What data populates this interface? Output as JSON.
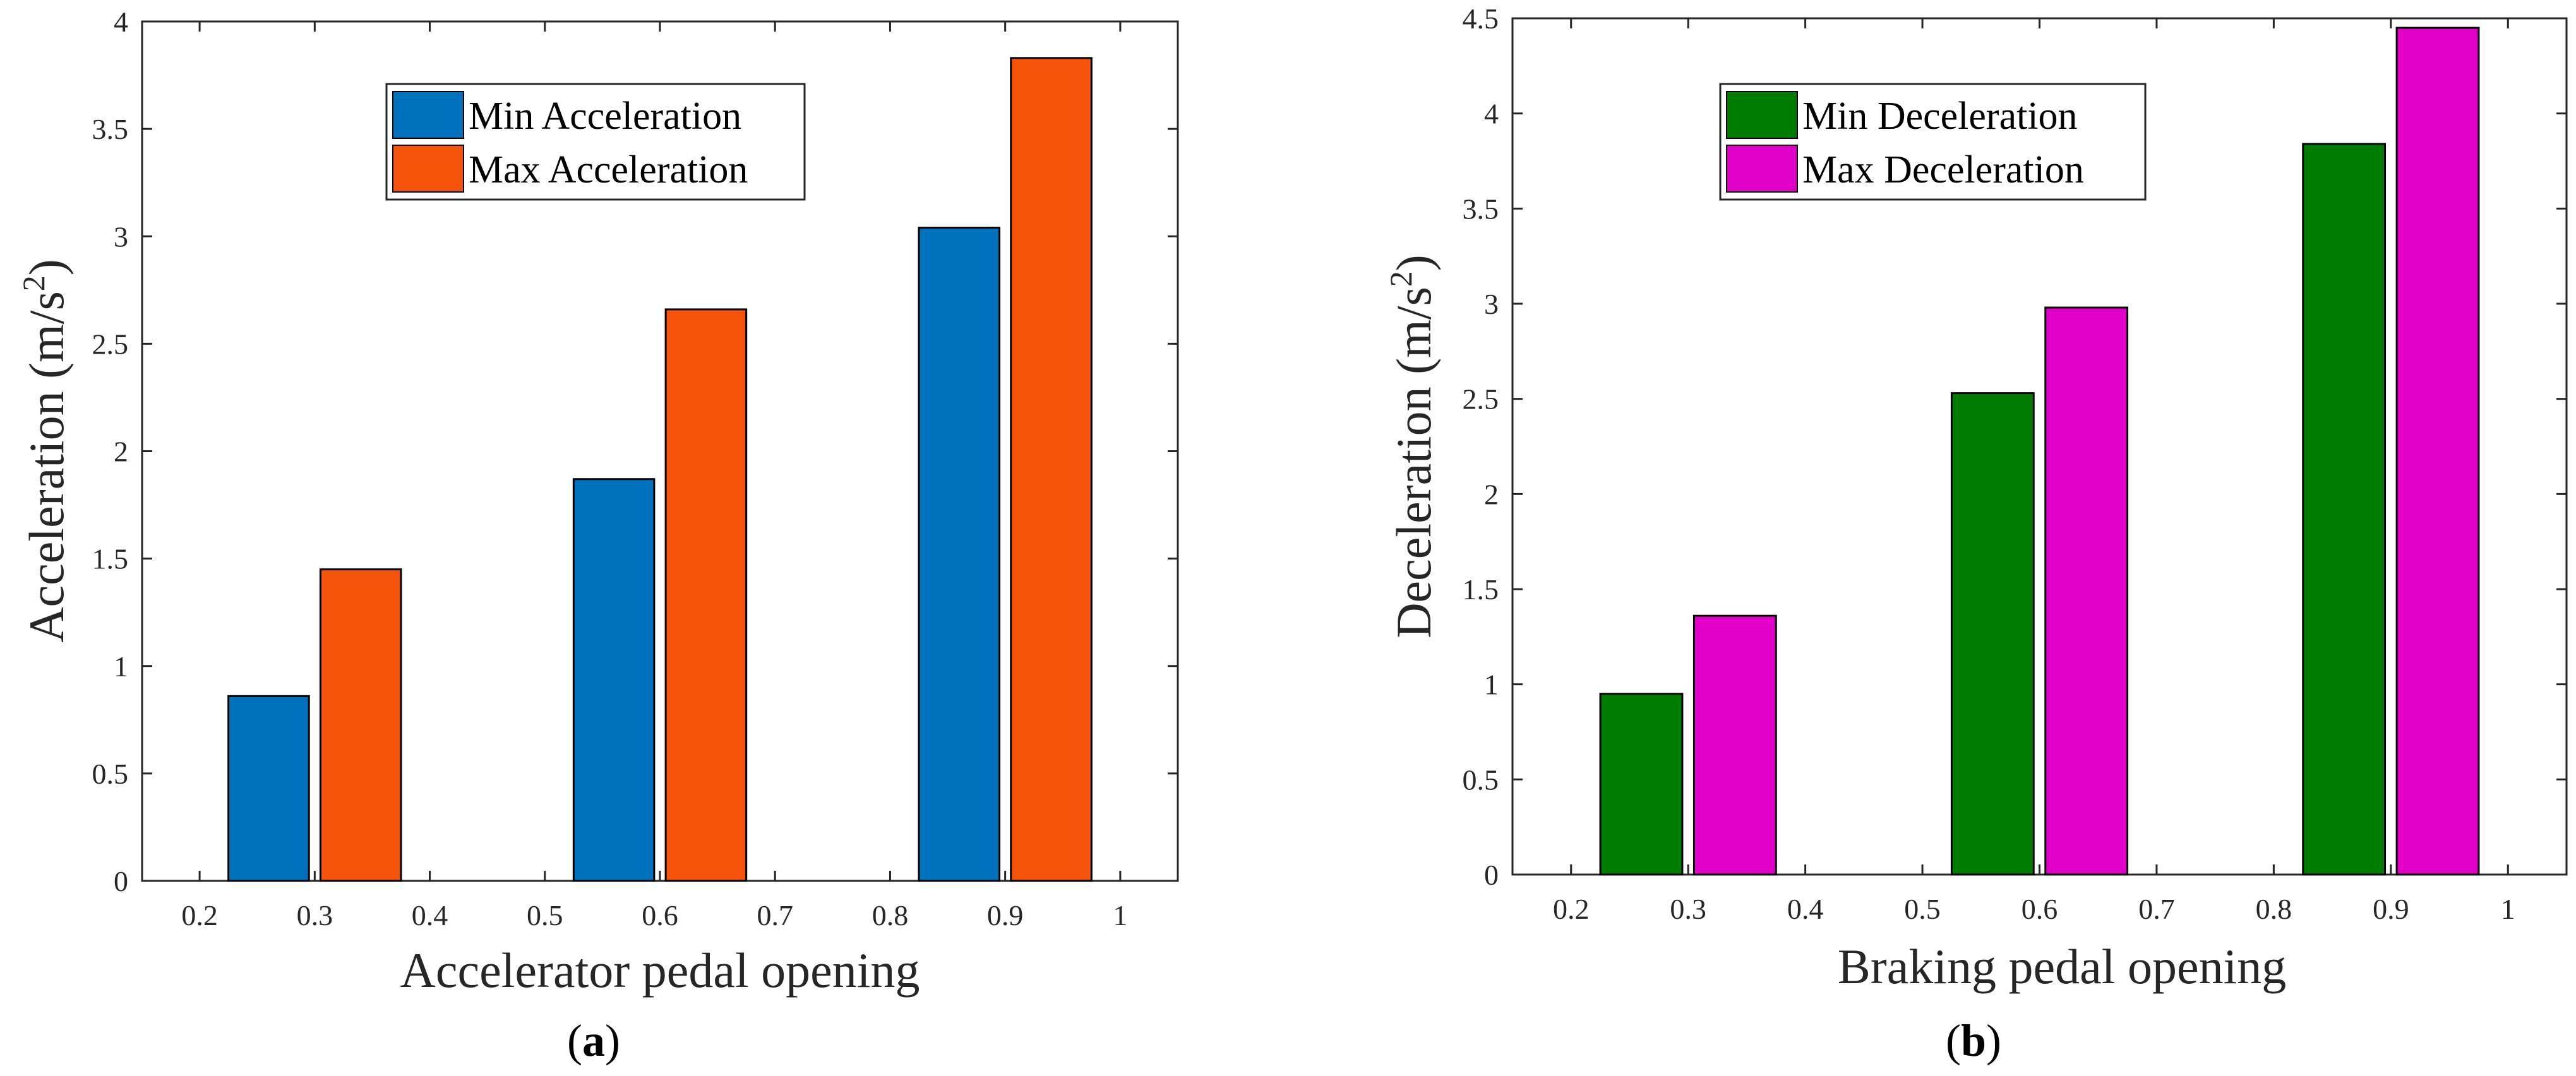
{
  "chart_data": [
    {
      "type": "bar",
      "panel_label": "a",
      "xlabel": "Accelerator pedal opening",
      "ylabel_base": "Acceleration (m/s",
      "ylabel_sup": "2",
      "ylabel_close": ")",
      "xlim": [
        0.15,
        1.05
      ],
      "ylim": [
        0,
        4
      ],
      "xticks": [
        0.2,
        0.3,
        0.4,
        0.5,
        0.6,
        0.7,
        0.8,
        0.9,
        1.0
      ],
      "xtick_labels": [
        "0.2",
        "0.3",
        "0.4",
        "0.5",
        "0.6",
        "0.7",
        "0.8",
        "0.9",
        "1"
      ],
      "yticks": [
        0,
        0.5,
        1,
        1.5,
        2,
        2.5,
        3,
        3.5,
        4
      ],
      "ytick_labels": [
        "0",
        "0.5",
        "1",
        "1.5",
        "2",
        "2.5",
        "3",
        "3.5",
        "4"
      ],
      "bar_width": 0.07,
      "legend_position": "top-center",
      "series": [
        {
          "name": "Min Acceleration",
          "color": "#0072BD",
          "x": [
            0.26,
            0.56,
            0.86
          ],
          "values": [
            0.86,
            1.87,
            3.04
          ]
        },
        {
          "name": "Max Acceleration",
          "color": "#F5520A",
          "x": [
            0.34,
            0.64,
            0.94
          ],
          "values": [
            1.45,
            2.66,
            3.83
          ]
        }
      ]
    },
    {
      "type": "bar",
      "panel_label": "b",
      "xlabel": "Braking pedal opening",
      "ylabel_base": "Deceleration (m/s",
      "ylabel_sup": "2",
      "ylabel_close": ")",
      "xlim": [
        0.15,
        1.05
      ],
      "ylim": [
        0,
        4.5
      ],
      "xticks": [
        0.2,
        0.3,
        0.4,
        0.5,
        0.6,
        0.7,
        0.8,
        0.9,
        1.0
      ],
      "xtick_labels": [
        "0.2",
        "0.3",
        "0.4",
        "0.5",
        "0.6",
        "0.7",
        "0.8",
        "0.9",
        "1"
      ],
      "yticks": [
        0,
        0.5,
        1,
        1.5,
        2,
        2.5,
        3,
        3.5,
        4,
        4.5
      ],
      "ytick_labels": [
        "0",
        "0.5",
        "1",
        "1.5",
        "2",
        "2.5",
        "3",
        "3.5",
        "4",
        "4.5"
      ],
      "bar_width": 0.07,
      "legend_position": "top-center",
      "series": [
        {
          "name": "Min Deceleration",
          "color": "#007D00",
          "x": [
            0.26,
            0.56,
            0.86
          ],
          "values": [
            0.95,
            2.53,
            3.84
          ]
        },
        {
          "name": "Max Deceleration",
          "color": "#E100C8",
          "x": [
            0.34,
            0.64,
            0.94
          ],
          "values": [
            1.36,
            2.98,
            4.45
          ]
        }
      ]
    }
  ]
}
